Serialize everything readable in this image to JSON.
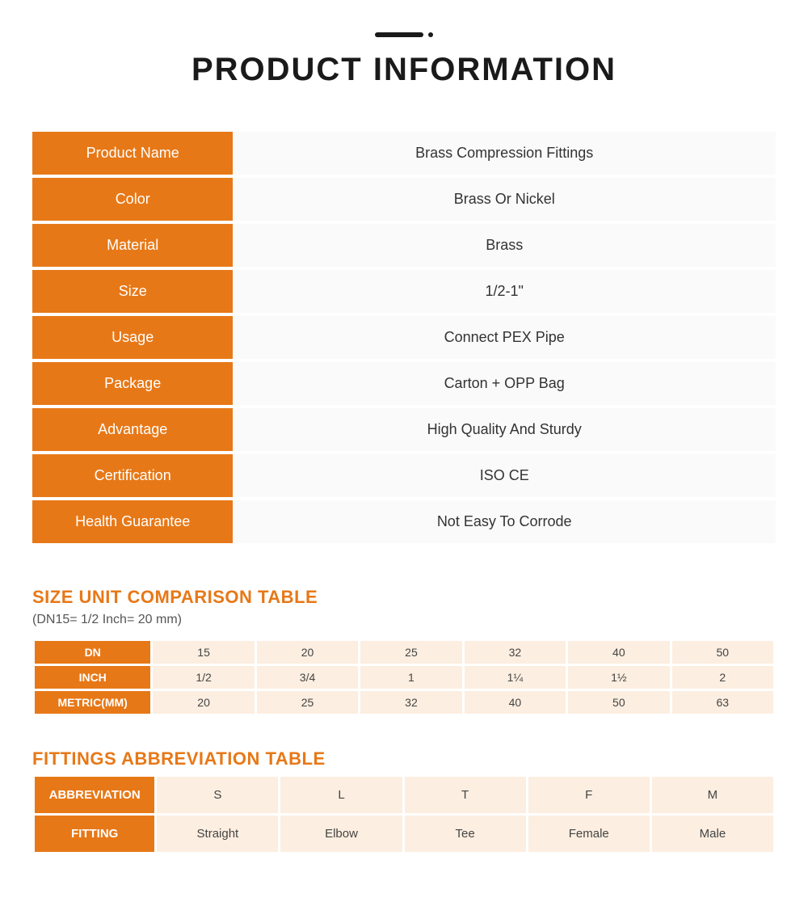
{
  "page_title": "PRODUCT INFORMATION",
  "colors": {
    "accent": "#e77817",
    "cell_bg": "#fceee0",
    "info_value_bg": "#fafafa",
    "text_dark": "#1a1a1a"
  },
  "product_info": {
    "rows": [
      {
        "label": "Product Name",
        "value": "Brass Compression Fittings"
      },
      {
        "label": "Color",
        "value": "Brass Or Nickel"
      },
      {
        "label": "Material",
        "value": "Brass"
      },
      {
        "label": "Size",
        "value": "1/2-1\""
      },
      {
        "label": "Usage",
        "value": "Connect PEX Pipe"
      },
      {
        "label": "Package",
        "value": "Carton + OPP Bag"
      },
      {
        "label": "Advantage",
        "value": "High Quality And Sturdy"
      },
      {
        "label": "Certification",
        "value": "ISO CE"
      },
      {
        "label": "Health Guarantee",
        "value": "Not Easy To Corrode"
      }
    ]
  },
  "size_table": {
    "title": "SIZE UNIT COMPARISON TABLE",
    "subtitle": "(DN15= 1/2 Inch= 20 mm)",
    "row_headers": [
      "DN",
      "INCH",
      "METRIC(MM)"
    ],
    "cells": [
      [
        "15",
        "20",
        "25",
        "32",
        "40",
        "50"
      ],
      [
        "1/2",
        "3/4",
        "1",
        "1¼",
        "1½",
        "2"
      ],
      [
        "20",
        "25",
        "32",
        "40",
        "50",
        "63"
      ]
    ]
  },
  "abbr_table": {
    "title": "FITTINGS ABBREVIATION TABLE",
    "row_headers": [
      "ABBREVIATION",
      "FITTING"
    ],
    "cells": [
      [
        "S",
        "L",
        "T",
        "F",
        "M"
      ],
      [
        "Straight",
        "Elbow",
        "Tee",
        "Female",
        "Male"
      ]
    ]
  }
}
